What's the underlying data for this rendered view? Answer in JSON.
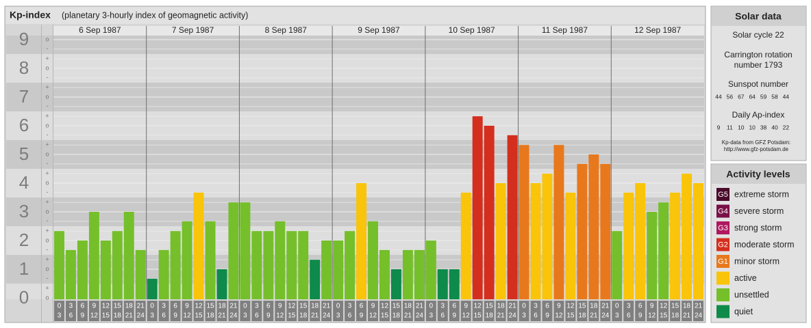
{
  "chart_data": {
    "type": "bar",
    "title": "Kp-index",
    "subtitle": "(planetary 3-hourly index of geomagnetic activity)",
    "ylim": [
      0,
      9
    ],
    "yticks": [
      0,
      1,
      2,
      3,
      4,
      5,
      6,
      7,
      8,
      9
    ],
    "subticks": [
      {
        "value": -0.33,
        "label": "-"
      },
      {
        "value": 0,
        "label": "o"
      },
      {
        "value": 0.33,
        "label": "+"
      }
    ],
    "hours": [
      [
        "0",
        "3"
      ],
      [
        "3",
        "6"
      ],
      [
        "6",
        "9"
      ],
      [
        "9",
        "12"
      ],
      [
        "12",
        "15"
      ],
      [
        "15",
        "18"
      ],
      [
        "18",
        "21"
      ],
      [
        "21",
        "24"
      ]
    ],
    "series": [
      {
        "name": "6 Sep 1987",
        "values": [
          2.33,
          1.67,
          2,
          3,
          2,
          2.33,
          3,
          1.67
        ],
        "colors": [
          "#75bf2b",
          "#75bf2b",
          "#75bf2b",
          "#75bf2b",
          "#75bf2b",
          "#75bf2b",
          "#75bf2b",
          "#75bf2b"
        ]
      },
      {
        "name": "7 Sep 1987",
        "values": [
          0.67,
          1.67,
          2.33,
          2.67,
          3.67,
          2.67,
          1,
          3.33
        ],
        "colors": [
          "#0e8a4a",
          "#75bf2b",
          "#75bf2b",
          "#75bf2b",
          "#f9c40a",
          "#75bf2b",
          "#0e8a4a",
          "#75bf2b"
        ]
      },
      {
        "name": "8 Sep 1987",
        "values": [
          3.33,
          2.33,
          2.33,
          2.67,
          2.33,
          2.33,
          1.33,
          2
        ],
        "colors": [
          "#75bf2b",
          "#75bf2b",
          "#75bf2b",
          "#75bf2b",
          "#75bf2b",
          "#75bf2b",
          "#0e8a4a",
          "#75bf2b"
        ]
      },
      {
        "name": "9 Sep 1987",
        "values": [
          2,
          2.33,
          4,
          2.67,
          1.67,
          1,
          1.67,
          1.67
        ],
        "colors": [
          "#75bf2b",
          "#75bf2b",
          "#f9c40a",
          "#75bf2b",
          "#75bf2b",
          "#0e8a4a",
          "#75bf2b",
          "#75bf2b"
        ]
      },
      {
        "name": "10 Sep 1987",
        "values": [
          2,
          1,
          1,
          3.67,
          6.33,
          6,
          4,
          5.67
        ],
        "colors": [
          "#75bf2b",
          "#0e8a4a",
          "#0e8a4a",
          "#f9c40a",
          "#d42e1e",
          "#d42e1e",
          "#f9c40a",
          "#d42e1e"
        ]
      },
      {
        "name": "11 Sep 1987",
        "values": [
          5.33,
          4,
          4.33,
          5.33,
          3.67,
          4.67,
          5,
          4.67
        ],
        "colors": [
          "#e8781c",
          "#f9c40a",
          "#f9c40a",
          "#e8781c",
          "#f9c40a",
          "#e8781c",
          "#e8781c",
          "#e8781c"
        ]
      },
      {
        "name": "12 Sep 1987",
        "values": [
          2.33,
          3.67,
          4,
          3,
          3.33,
          3.67,
          4.33,
          4
        ],
        "colors": [
          "#75bf2b",
          "#f9c40a",
          "#f9c40a",
          "#75bf2b",
          "#75bf2b",
          "#f9c40a",
          "#f9c40a",
          "#f9c40a"
        ]
      }
    ]
  },
  "solar_data": {
    "title": "Solar data",
    "cycle": "Solar cycle 22",
    "carrington": [
      "Carrington rotation",
      "number 1793"
    ],
    "sunspot_title": "Sunspot number",
    "sunspot": [
      44,
      56,
      67,
      64,
      59,
      58,
      44
    ],
    "ap_title": "Daily Ap-index",
    "ap": [
      9,
      11,
      10,
      10,
      38,
      40,
      22
    ],
    "source": [
      "Kp-data from GFZ Potsdam:",
      "http://www.gfz-potsdam.de"
    ]
  },
  "activity_levels": {
    "title": "Activity levels",
    "items": [
      {
        "badge": "G5",
        "label": "extreme storm",
        "color": "#4a0a2a"
      },
      {
        "badge": "G4",
        "label": "severe storm",
        "color": "#7a1048"
      },
      {
        "badge": "G3",
        "label": "strong storm",
        "color": "#b0185f"
      },
      {
        "badge": "G2",
        "label": "moderate storm",
        "color": "#d42e1e"
      },
      {
        "badge": "G1",
        "label": "minor storm",
        "color": "#e8781c"
      },
      {
        "label": "active",
        "color": "#f9c40a"
      },
      {
        "label": "unsettled",
        "color": "#75bf2b"
      },
      {
        "label": "quiet",
        "color": "#0e8a4a"
      }
    ]
  }
}
